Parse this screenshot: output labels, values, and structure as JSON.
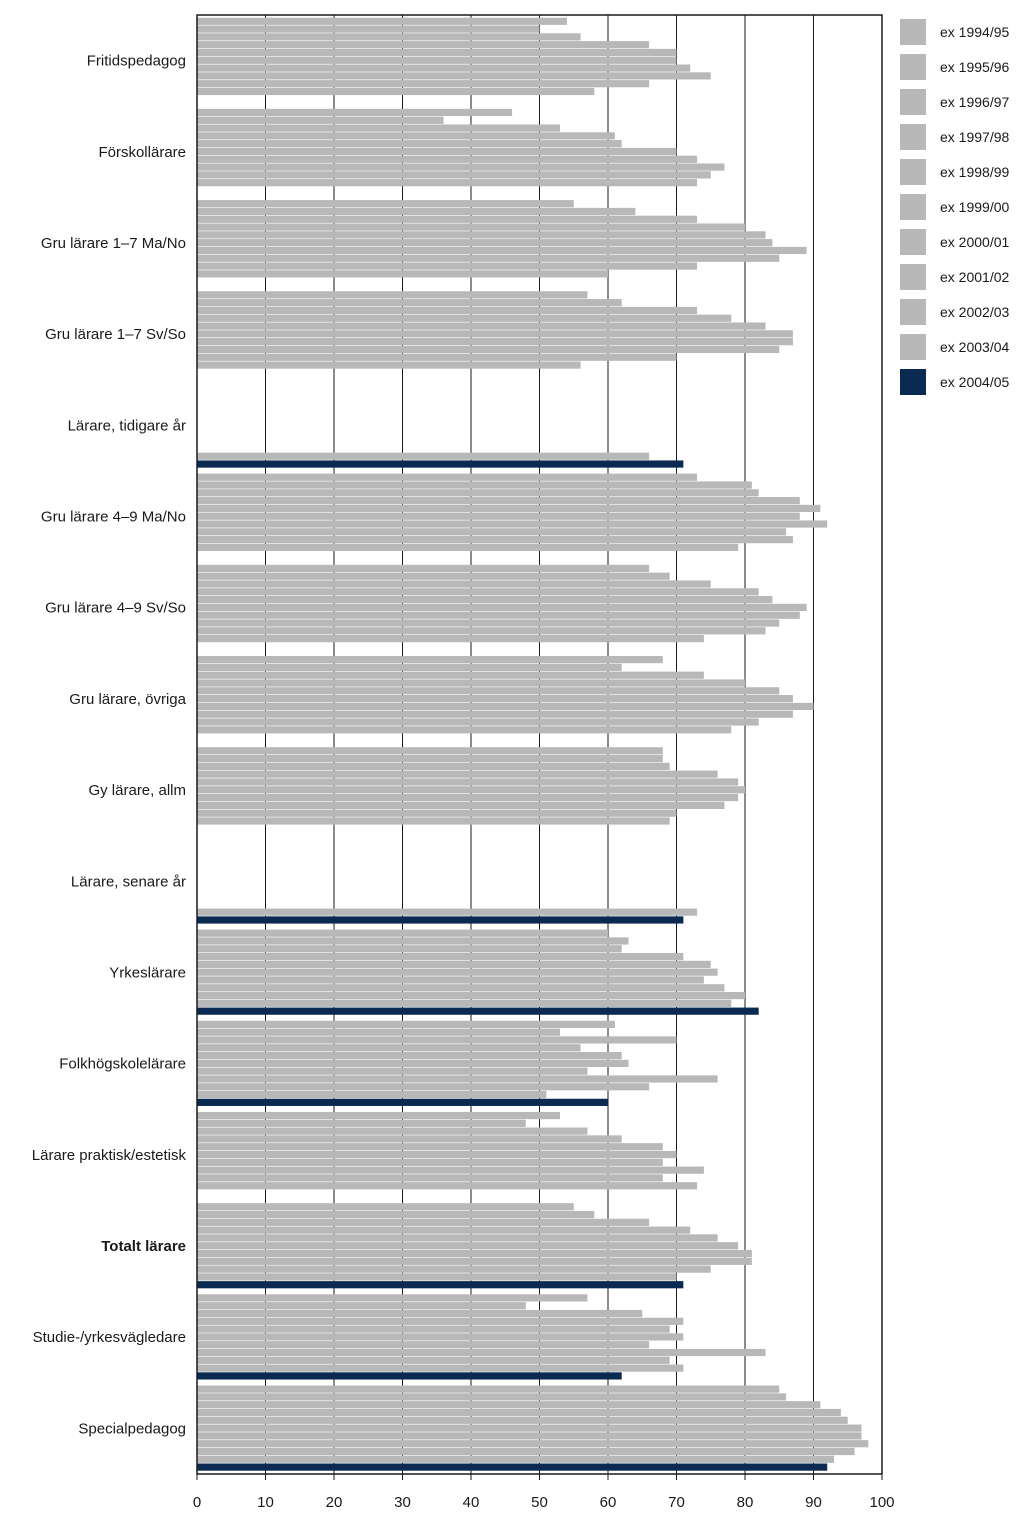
{
  "chart_data": {
    "type": "bar",
    "orientation": "horizontal",
    "title": "",
    "xlabel": "",
    "ylabel": "",
    "xlim": [
      0,
      100
    ],
    "xticks": [
      "0",
      "10",
      "20",
      "30",
      "40",
      "50",
      "60",
      "70",
      "80",
      "90",
      "100"
    ],
    "grid": true,
    "legend_position": "right",
    "categories": [
      {
        "label": "Fritidspedagog",
        "bold": false
      },
      {
        "label": "Förskollärare",
        "bold": false
      },
      {
        "label": "Gru lärare 1–7 Ma/No",
        "bold": false
      },
      {
        "label": "Gru lärare 1–7 Sv/So",
        "bold": false
      },
      {
        "label": "Lärare, tidigare år",
        "bold": false
      },
      {
        "label": "Gru lärare 4–9 Ma/No",
        "bold": false
      },
      {
        "label": "Gru lärare 4–9 Sv/So",
        "bold": false
      },
      {
        "label": "Gru lärare, övriga",
        "bold": false
      },
      {
        "label": "Gy lärare, allm",
        "bold": false
      },
      {
        "label": "Lärare, senare år",
        "bold": false
      },
      {
        "label": "Yrkeslärare",
        "bold": false
      },
      {
        "label": "Folkhögskolelärare",
        "bold": false
      },
      {
        "label": "Lärare praktisk/estetisk",
        "bold": false
      },
      {
        "label": "Totalt lärare",
        "bold": true
      },
      {
        "label": "Studie-/yrkesvägledare",
        "bold": false
      },
      {
        "label": "Specialpedagog",
        "bold": false
      }
    ],
    "series": [
      {
        "name": "ex 1994/95",
        "color": "#b8b8b8",
        "values": [
          54,
          46,
          55,
          57,
          null,
          73,
          66,
          68,
          68,
          null,
          60,
          61,
          53,
          55,
          57,
          85
        ]
      },
      {
        "name": "ex 1995/96",
        "color": "#b8b8b8",
        "values": [
          50,
          36,
          64,
          62,
          null,
          81,
          69,
          62,
          68,
          null,
          63,
          53,
          48,
          58,
          48,
          86
        ]
      },
      {
        "name": "ex 1996/97",
        "color": "#b8b8b8",
        "values": [
          56,
          53,
          73,
          73,
          null,
          82,
          75,
          74,
          69,
          null,
          62,
          70,
          57,
          66,
          65,
          91
        ]
      },
      {
        "name": "ex 1997/98",
        "color": "#b8b8b8",
        "values": [
          66,
          61,
          80,
          78,
          null,
          88,
          82,
          80,
          76,
          null,
          71,
          56,
          62,
          72,
          71,
          94
        ]
      },
      {
        "name": "ex 1998/99",
        "color": "#b8b8b8",
        "values": [
          70,
          62,
          83,
          83,
          null,
          91,
          84,
          85,
          79,
          null,
          75,
          62,
          68,
          76,
          69,
          95
        ]
      },
      {
        "name": "ex 1999/00",
        "color": "#b8b8b8",
        "values": [
          70,
          70,
          84,
          87,
          null,
          88,
          89,
          87,
          80,
          null,
          76,
          63,
          70,
          79,
          71,
          97
        ]
      },
      {
        "name": "ex 2000/01",
        "color": "#b8b8b8",
        "values": [
          72,
          73,
          89,
          87,
          null,
          92,
          88,
          90,
          79,
          null,
          74,
          57,
          68,
          81,
          66,
          97
        ]
      },
      {
        "name": "ex 2001/02",
        "color": "#b8b8b8",
        "values": [
          75,
          77,
          85,
          85,
          null,
          86,
          85,
          87,
          77,
          null,
          77,
          76,
          74,
          81,
          83,
          98
        ]
      },
      {
        "name": "ex 2002/03",
        "color": "#b8b8b8",
        "values": [
          66,
          75,
          73,
          70,
          null,
          87,
          83,
          82,
          70,
          null,
          80,
          66,
          68,
          75,
          69,
          96
        ]
      },
      {
        "name": "ex 2003/04",
        "color": "#b8b8b8",
        "values": [
          58,
          73,
          60,
          56,
          66,
          79,
          74,
          78,
          69,
          73,
          78,
          51,
          73,
          70,
          71,
          93
        ]
      },
      {
        "name": "ex 2004/05",
        "color": "#0a2a52",
        "values": [
          null,
          null,
          null,
          null,
          71,
          null,
          null,
          null,
          null,
          71,
          82,
          60,
          null,
          71,
          62,
          92
        ]
      }
    ]
  }
}
